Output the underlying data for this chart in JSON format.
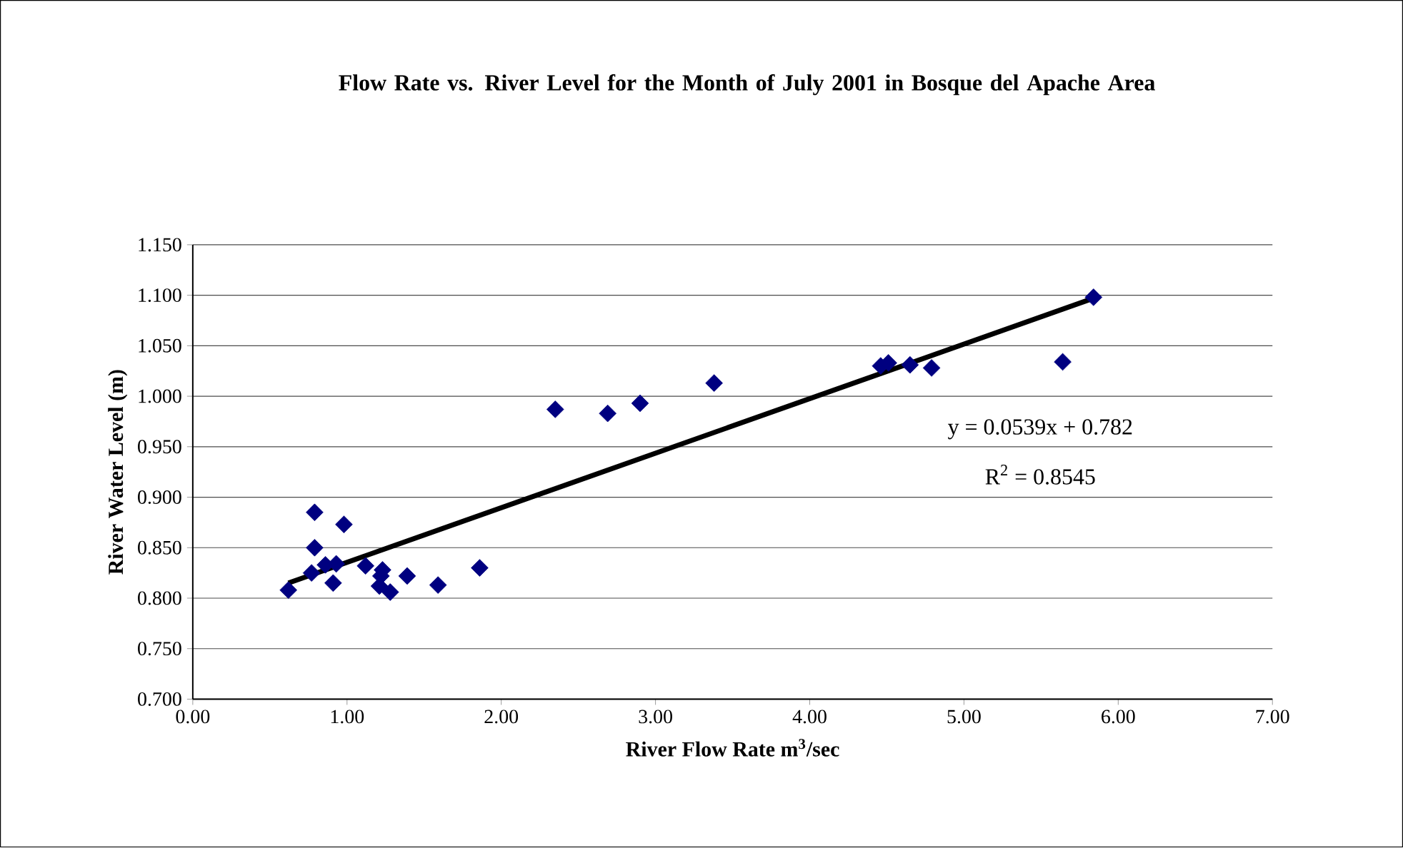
{
  "chart_data": {
    "type": "scatter",
    "title": "Flow Rate vs. River Level for the Month of July 2001 in Bosque del Apache Area",
    "xlabel": "River Flow Rate m$^{3}$/sec",
    "ylabel": "River Water Level (m)",
    "xlim": [
      0,
      7
    ],
    "ylim": [
      0.7,
      1.15
    ],
    "xticks": [
      {
        "value": 0,
        "label": "0.00"
      },
      {
        "value": 1,
        "label": "1.00"
      },
      {
        "value": 2,
        "label": "2.00"
      },
      {
        "value": 3,
        "label": "3.00"
      },
      {
        "value": 4,
        "label": "4.00"
      },
      {
        "value": 5,
        "label": "5.00"
      },
      {
        "value": 6,
        "label": "6.00"
      },
      {
        "value": 7,
        "label": "7.00"
      }
    ],
    "yticks": [
      {
        "value": 0.7,
        "label": "0.700"
      },
      {
        "value": 0.75,
        "label": "0.750"
      },
      {
        "value": 0.8,
        "label": "0.800"
      },
      {
        "value": 0.85,
        "label": "0.850"
      },
      {
        "value": 0.9,
        "label": "0.900"
      },
      {
        "value": 0.95,
        "label": "0.950"
      },
      {
        "value": 1.0,
        "label": "1.000"
      },
      {
        "value": 1.05,
        "label": "1.050"
      },
      {
        "value": 1.1,
        "label": "1.100"
      },
      {
        "value": 1.15,
        "label": "1.150"
      }
    ],
    "grid": "y",
    "marker": "diamond",
    "series": [
      {
        "color": "#000080",
        "x": [
          0.62,
          0.79,
          0.79,
          0.77,
          0.86,
          0.91,
          0.93,
          0.98,
          1.12,
          1.22,
          1.23,
          1.21,
          1.28,
          1.39,
          1.59,
          1.86,
          2.35,
          2.69,
          2.9,
          3.38,
          4.46,
          4.51,
          4.65,
          4.79,
          5.64,
          5.84
        ],
        "values": [
          0.808,
          0.885,
          0.85,
          0.825,
          0.833,
          0.815,
          0.834,
          0.873,
          0.832,
          0.822,
          0.828,
          0.812,
          0.806,
          0.822,
          0.813,
          0.83,
          0.987,
          0.983,
          0.993,
          1.013,
          1.03,
          1.033,
          1.031,
          1.028,
          1.034,
          1.098
        ]
      },
      {
        "type": "line",
        "color": "#000000",
        "marker": "none",
        "x": [
          0.62,
          5.84
        ],
        "values": [
          0.815,
          1.097
        ]
      }
    ],
    "annotations": [
      "y = 0.0539x + 0.782",
      "R$^{2}$ = 0.8545"
    ]
  }
}
